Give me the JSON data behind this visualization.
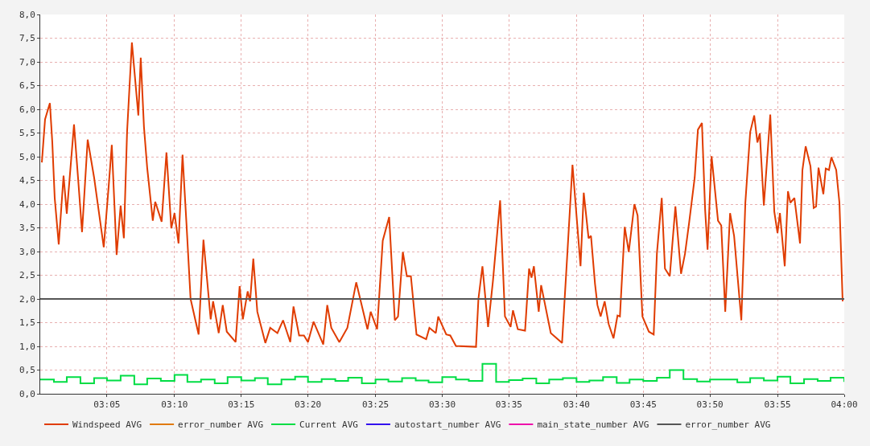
{
  "chart_data": {
    "type": "line",
    "xlim": [
      3.0,
      4.0
    ],
    "ylim": [
      0,
      8
    ],
    "xticks": [
      {
        "value": 3.083,
        "label": "03:05"
      },
      {
        "value": 3.167,
        "label": "03:10"
      },
      {
        "value": 3.25,
        "label": "03:15"
      },
      {
        "value": 3.333,
        "label": "03:20"
      },
      {
        "value": 3.417,
        "label": "03:25"
      },
      {
        "value": 3.5,
        "label": "03:30"
      },
      {
        "value": 3.583,
        "label": "03:35"
      },
      {
        "value": 3.667,
        "label": "03:40"
      },
      {
        "value": 3.75,
        "label": "03:45"
      },
      {
        "value": 3.833,
        "label": "03:50"
      },
      {
        "value": 3.917,
        "label": "03:55"
      },
      {
        "value": 4.0,
        "label": "04:00"
      }
    ],
    "yticks": [
      {
        "value": 0,
        "label": "0,0"
      },
      {
        "value": 0.5,
        "label": "0,5"
      },
      {
        "value": 1,
        "label": "1,0"
      },
      {
        "value": 1.5,
        "label": "1,5"
      },
      {
        "value": 2,
        "label": "2,0"
      },
      {
        "value": 2.5,
        "label": "2,5"
      },
      {
        "value": 3,
        "label": "3,0"
      },
      {
        "value": 3.5,
        "label": "3,5"
      },
      {
        "value": 4,
        "label": "4,0"
      },
      {
        "value": 4.5,
        "label": "4,5"
      },
      {
        "value": 5,
        "label": "5,0"
      },
      {
        "value": 5.5,
        "label": "5,5"
      },
      {
        "value": 6,
        "label": "6,0"
      },
      {
        "value": 6.5,
        "label": "6,5"
      },
      {
        "value": 7,
        "label": "7,0"
      },
      {
        "value": 7.5,
        "label": "7,5"
      },
      {
        "value": 8,
        "label": "8,0"
      }
    ],
    "grid": true,
    "legend": "bottom",
    "marker": "none",
    "line_style": "solid",
    "series": [
      {
        "name": "Windspeed AVG",
        "color": "#e03c00",
        "x": [
          3.002,
          3.006,
          3.012,
          3.015,
          3.018,
          3.023,
          3.029,
          3.033,
          3.042,
          3.047,
          3.052,
          3.059,
          3.067,
          3.079,
          3.085,
          3.089,
          3.095,
          3.1,
          3.104,
          3.108,
          3.114,
          3.122,
          3.125,
          3.129,
          3.133,
          3.14,
          3.143,
          3.151,
          3.157,
          3.163,
          3.167,
          3.172,
          3.177,
          3.182,
          3.187,
          3.197,
          3.203,
          3.212,
          3.215,
          3.222,
          3.227,
          3.232,
          3.243,
          3.248,
          3.252,
          3.258,
          3.261,
          3.265,
          3.27,
          3.28,
          3.286,
          3.295,
          3.302,
          3.311,
          3.315,
          3.322,
          3.328,
          3.333,
          3.34,
          3.352,
          3.357,
          3.362,
          3.372,
          3.382,
          3.393,
          3.407,
          3.411,
          3.419,
          3.426,
          3.434,
          3.441,
          3.445,
          3.451,
          3.456,
          3.461,
          3.468,
          3.48,
          3.484,
          3.492,
          3.495,
          3.505,
          3.51,
          3.517,
          3.542,
          3.545,
          3.55,
          3.557,
          3.563,
          3.572,
          3.578,
          3.585,
          3.588,
          3.594,
          3.603,
          3.608,
          3.611,
          3.614,
          3.62,
          3.623,
          3.635,
          3.649,
          3.656,
          3.662,
          3.672,
          3.676,
          3.682,
          3.685,
          3.69,
          3.693,
          3.697,
          3.702,
          3.707,
          3.713,
          3.718,
          3.721,
          3.727,
          3.732,
          3.739,
          3.743,
          3.749,
          3.757,
          3.763,
          3.767,
          3.773,
          3.777,
          3.783,
          3.79,
          3.797,
          3.802,
          3.807,
          3.814,
          3.818,
          3.823,
          3.827,
          3.83,
          3.835,
          3.843,
          3.847,
          3.852,
          3.858,
          3.863,
          3.872,
          3.877,
          3.883,
          3.888,
          3.892,
          3.895,
          3.9,
          3.908,
          3.913,
          3.917,
          3.92,
          3.926,
          3.93,
          3.933,
          3.938,
          3.945,
          3.948,
          3.952,
          3.958,
          3.962,
          3.965,
          3.968,
          3.974,
          3.977,
          3.981,
          3.984,
          3.99,
          3.994,
          3.997,
          3.998
        ],
        "values": [
          4.88,
          5.79,
          6.13,
          5.3,
          4.13,
          3.15,
          4.6,
          3.8,
          5.68,
          4.56,
          3.41,
          5.36,
          4.56,
          3.09,
          4.35,
          5.25,
          2.93,
          3.97,
          3.28,
          5.52,
          7.41,
          5.87,
          7.09,
          5.63,
          4.77,
          3.65,
          4.05,
          3.63,
          5.09,
          3.49,
          3.81,
          3.17,
          5.04,
          3.55,
          2.0,
          1.25,
          3.25,
          1.57,
          1.95,
          1.28,
          1.87,
          1.31,
          1.09,
          2.27,
          1.57,
          2.16,
          1.95,
          2.85,
          1.73,
          1.07,
          1.39,
          1.28,
          1.55,
          1.09,
          1.84,
          1.23,
          1.23,
          1.09,
          1.52,
          1.04,
          1.87,
          1.39,
          1.09,
          1.39,
          2.35,
          1.36,
          1.73,
          1.36,
          3.23,
          3.73,
          1.55,
          1.63,
          2.99,
          2.48,
          2.48,
          1.25,
          1.15,
          1.39,
          1.28,
          1.63,
          1.25,
          1.23,
          1.01,
          0.99,
          2.0,
          2.69,
          1.41,
          2.37,
          4.08,
          1.63,
          1.41,
          1.76,
          1.36,
          1.33,
          2.64,
          2.45,
          2.69,
          1.73,
          2.29,
          1.28,
          1.07,
          3.07,
          4.83,
          2.69,
          4.24,
          3.28,
          3.33,
          2.32,
          1.87,
          1.63,
          1.95,
          1.47,
          1.17,
          1.65,
          1.63,
          3.52,
          2.99,
          4.0,
          3.76,
          1.63,
          1.31,
          1.25,
          2.96,
          4.13,
          2.64,
          2.48,
          3.95,
          2.53,
          2.96,
          3.6,
          4.56,
          5.57,
          5.71,
          3.87,
          3.04,
          5.01,
          3.65,
          3.55,
          1.73,
          3.81,
          3.33,
          1.55,
          4.03,
          5.52,
          5.87,
          5.3,
          5.49,
          3.97,
          5.89,
          3.84,
          3.39,
          3.81,
          2.69,
          4.27,
          4.03,
          4.13,
          3.17,
          4.72,
          5.22,
          4.8,
          3.92,
          3.95,
          4.77,
          4.21,
          4.75,
          4.72,
          4.99,
          4.72,
          4.03,
          2.48,
          1.95
        ]
      },
      {
        "name": "error_number AVG",
        "color": "#e07a10"
      },
      {
        "name": "Current AVG",
        "color": "#00dd44",
        "type": "step",
        "x": [
          3.0,
          3.017,
          3.033,
          3.05,
          3.067,
          3.083,
          3.1,
          3.117,
          3.133,
          3.15,
          3.167,
          3.183,
          3.2,
          3.217,
          3.233,
          3.25,
          3.267,
          3.283,
          3.3,
          3.317,
          3.333,
          3.35,
          3.367,
          3.383,
          3.4,
          3.417,
          3.433,
          3.45,
          3.467,
          3.483,
          3.5,
          3.517,
          3.533,
          3.55,
          3.567,
          3.583,
          3.6,
          3.617,
          3.633,
          3.65,
          3.667,
          3.683,
          3.7,
          3.717,
          3.733,
          3.75,
          3.767,
          3.783,
          3.8,
          3.817,
          3.833,
          3.85,
          3.867,
          3.883,
          3.9,
          3.917,
          3.933,
          3.95,
          3.967,
          3.983,
          4.0
        ],
        "values": [
          0.3,
          0.25,
          0.35,
          0.22,
          0.33,
          0.28,
          0.38,
          0.2,
          0.32,
          0.27,
          0.4,
          0.25,
          0.3,
          0.22,
          0.35,
          0.28,
          0.33,
          0.2,
          0.3,
          0.36,
          0.25,
          0.31,
          0.27,
          0.34,
          0.22,
          0.3,
          0.26,
          0.33,
          0.28,
          0.24,
          0.35,
          0.3,
          0.27,
          0.63,
          0.25,
          0.29,
          0.32,
          0.22,
          0.3,
          0.33,
          0.25,
          0.28,
          0.35,
          0.23,
          0.3,
          0.27,
          0.34,
          0.5,
          0.31,
          0.26,
          0.3,
          0.3,
          0.24,
          0.33,
          0.28,
          0.36,
          0.22,
          0.31,
          0.27,
          0.34,
          0.25
        ]
      },
      {
        "name": "autostart_number AVG",
        "color": "#3311ee"
      },
      {
        "name": "main_state_number AVG",
        "color": "#ee11aa"
      },
      {
        "name": "error_number AVG",
        "color": "#555555",
        "x": [
          3.0,
          4.0
        ],
        "values": [
          2,
          2
        ]
      }
    ]
  }
}
